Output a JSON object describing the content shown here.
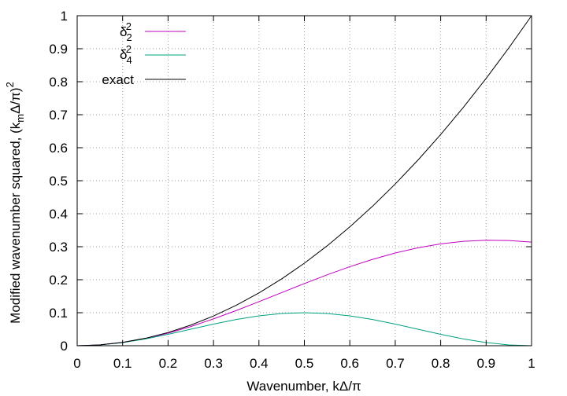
{
  "chart_data": {
    "type": "line",
    "xlabel": "Wavenumber, kΔ/π",
    "ylabel_main": "Modified wavenumber squared, (k",
    "ylabel_sub": "m",
    "ylabel_mid": "Δ/π)",
    "ylabel_sup": "2",
    "xlim": [
      0,
      1
    ],
    "ylim": [
      0,
      1
    ],
    "xticks": [
      "0",
      "0.1",
      "0.2",
      "0.3",
      "0.4",
      "0.5",
      "0.6",
      "0.7",
      "0.8",
      "0.9",
      "1"
    ],
    "yticks": [
      "0",
      "0.1",
      "0.2",
      "0.3",
      "0.4",
      "0.5",
      "0.6",
      "0.7",
      "0.8",
      "0.9",
      "1"
    ],
    "grid": true,
    "legend_position": "top-left",
    "x": [
      0,
      0.05,
      0.1,
      0.15,
      0.2,
      0.25,
      0.3,
      0.35,
      0.4,
      0.45,
      0.5,
      0.55,
      0.6,
      0.65,
      0.7,
      0.75,
      0.8,
      0.85,
      0.9,
      0.95,
      1
    ],
    "series": [
      {
        "legend_base": "δ",
        "legend_sub": "2",
        "legend_sup": "2",
        "color": "#c000c0",
        "values": [
          0,
          0.0025,
          0.0098,
          0.0219,
          0.0382,
          0.0581,
          0.0812,
          0.1065,
          0.1334,
          0.1609,
          0.1883,
          0.2147,
          0.2394,
          0.2617,
          0.281,
          0.2968,
          0.3087,
          0.3164,
          0.3197,
          0.3187,
          0.314
        ]
      },
      {
        "legend_base": "δ",
        "legend_sub": "4",
        "legend_sup": "2",
        "color": "#00a080",
        "values": [
          0,
          0.0024,
          0.0096,
          0.0206,
          0.0345,
          0.05,
          0.0655,
          0.0794,
          0.0905,
          0.0976,
          0.1,
          0.0976,
          0.0905,
          0.0794,
          0.0655,
          0.05,
          0.0345,
          0.0206,
          0.0096,
          0.0024,
          0
        ]
      },
      {
        "legend_label": "exact",
        "color": "#000000",
        "values": [
          0,
          0.0025,
          0.01,
          0.0225,
          0.04,
          0.0625,
          0.09,
          0.1225,
          0.16,
          0.2025,
          0.25,
          0.3025,
          0.36,
          0.4225,
          0.49,
          0.5625,
          0.64,
          0.7225,
          0.81,
          0.9025,
          1
        ]
      }
    ]
  }
}
